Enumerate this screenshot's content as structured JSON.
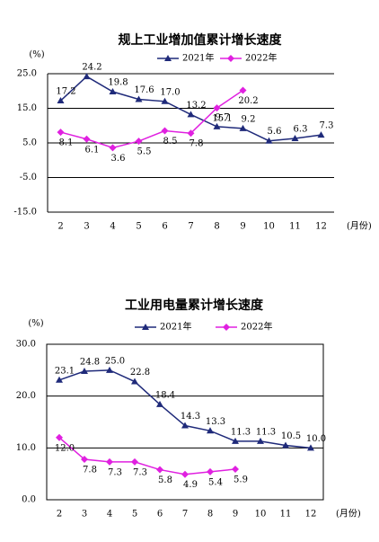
{
  "chart_data": [
    {
      "type": "line",
      "title": "规上工业增加值累计增长速度",
      "y_label": "(%)",
      "x_label": "(月份)",
      "categories": [
        "2",
        "3",
        "4",
        "5",
        "6",
        "7",
        "8",
        "9",
        "10",
        "11",
        "12"
      ],
      "ylim": [
        -15,
        25
      ],
      "yticks": [
        {
          "value": -15,
          "label": "-15.0"
        },
        {
          "value": -5,
          "label": "-5.0"
        },
        {
          "value": 5,
          "label": "5.0"
        },
        {
          "value": 15,
          "label": "15.0"
        },
        {
          "value": 25,
          "label": "25.0"
        }
      ],
      "grid": true,
      "series": [
        {
          "name": "2021年",
          "color": "#1f2a7a",
          "marker": "triangle",
          "values": [
            17.2,
            24.2,
            19.8,
            17.6,
            17.0,
            13.2,
            9.7,
            9.2,
            5.6,
            6.3,
            7.3
          ],
          "value_labels": [
            "17.2",
            "24.2",
            "19.8",
            "17.6",
            "17.0",
            "13.2",
            "9.7",
            "9.2",
            "5.6",
            "6.3",
            "7.3"
          ]
        },
        {
          "name": "2022年",
          "color": "#e020e0",
          "marker": "diamond",
          "values": [
            8.1,
            6.1,
            3.6,
            5.5,
            8.5,
            7.8,
            15.1,
            20.2,
            null,
            null,
            null
          ],
          "value_labels": [
            "8.1",
            "6.1",
            "3.6",
            "5.5",
            "8.5",
            "7.8",
            "15.1",
            "20.2",
            null,
            null,
            null
          ]
        }
      ]
    },
    {
      "type": "line",
      "title": "工业用电量累计增长速度",
      "y_label": "(%)",
      "x_label": "(月份)",
      "categories": [
        "2",
        "3",
        "4",
        "5",
        "6",
        "7",
        "8",
        "9",
        "10",
        "11",
        "12"
      ],
      "ylim": [
        0,
        30
      ],
      "yticks": [
        {
          "value": 0,
          "label": "0.0"
        },
        {
          "value": 10,
          "label": "10.0"
        },
        {
          "value": 20,
          "label": "20.0"
        },
        {
          "value": 30,
          "label": "30.0"
        }
      ],
      "grid": true,
      "series": [
        {
          "name": "2021年",
          "color": "#1f2a7a",
          "marker": "triangle",
          "values": [
            23.1,
            24.8,
            25.0,
            22.8,
            18.4,
            14.3,
            13.3,
            11.3,
            11.3,
            10.5,
            10.0
          ],
          "value_labels": [
            "23.1",
            "24.8",
            "25.0",
            "22.8",
            "18.4",
            "14.3",
            "13.3",
            "11.3",
            "11.3",
            "10.5",
            "10.0"
          ]
        },
        {
          "name": "2022年",
          "color": "#e020e0",
          "marker": "diamond",
          "values": [
            12.0,
            7.8,
            7.3,
            7.3,
            5.8,
            4.9,
            5.4,
            5.9,
            null,
            null,
            null
          ],
          "value_labels": [
            "12.0",
            "7.8",
            "7.3",
            "7.3",
            "5.8",
            "4.9",
            "5.4",
            "5.9",
            null,
            null,
            null
          ]
        }
      ]
    }
  ]
}
